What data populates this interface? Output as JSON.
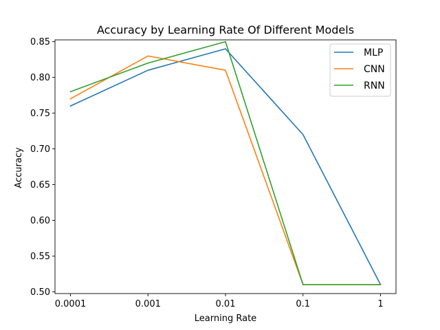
{
  "chart_data": {
    "type": "line",
    "title": "Accuracy by Learning Rate Of Different Models",
    "xlabel": "Learning Rate",
    "ylabel": "Accuracy",
    "categories": [
      "0.0001",
      "0.001",
      "0.01",
      "0.1",
      "1"
    ],
    "ylim": [
      0.4975,
      0.8525
    ],
    "yticks": [
      "0.50",
      "0.55",
      "0.60",
      "0.65",
      "0.70",
      "0.75",
      "0.80",
      "0.85"
    ],
    "grid": false,
    "legend_position": "top-right",
    "series": [
      {
        "name": "MLP",
        "color": "#1f77b4",
        "values": [
          0.76,
          0.81,
          0.84,
          0.72,
          0.51
        ]
      },
      {
        "name": "CNN",
        "color": "#ff7f0e",
        "values": [
          0.77,
          0.83,
          0.81,
          0.51,
          0.51
        ]
      },
      {
        "name": "RNN",
        "color": "#2ca02c",
        "values": [
          0.78,
          0.82,
          0.85,
          0.51,
          0.51
        ]
      }
    ]
  }
}
